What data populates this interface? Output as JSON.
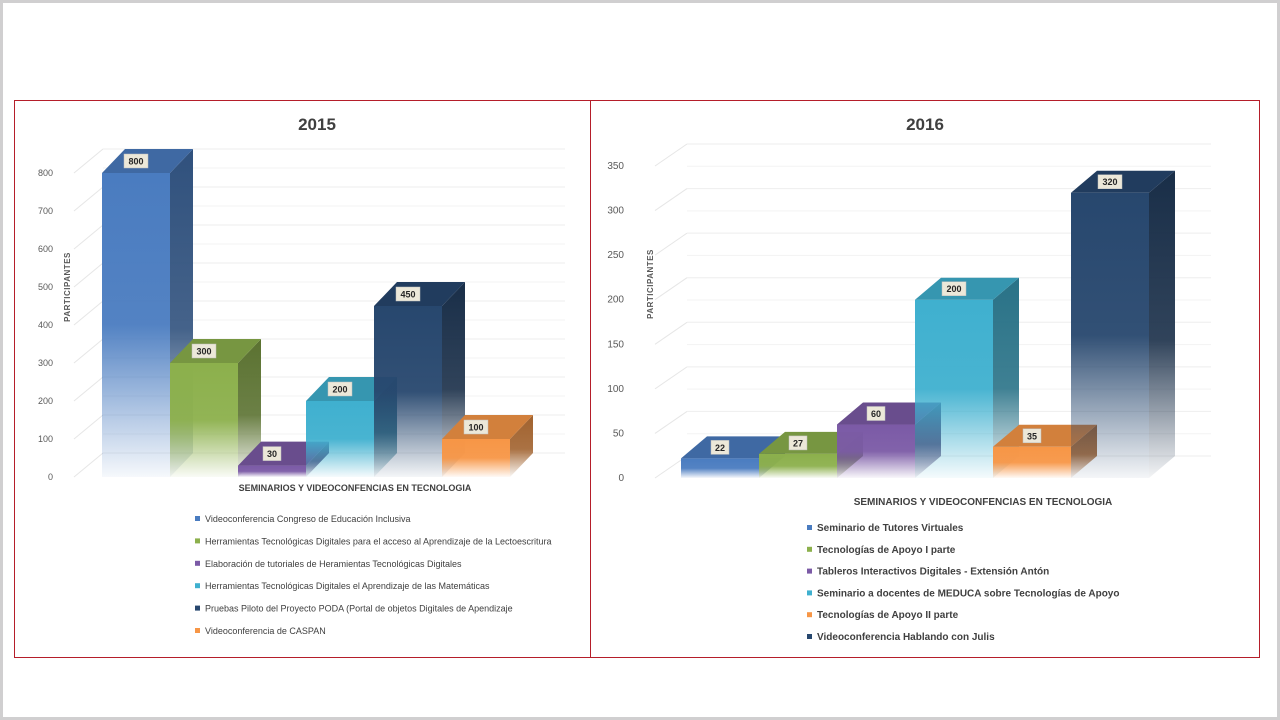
{
  "chart_data": [
    {
      "type": "bar",
      "title": "2015",
      "xlabel": "SEMINARIOS Y  VIDEOCONFENCIAS  EN  TECNOLOGIA",
      "ylabel": "PARTICIPANTES",
      "ylim": [
        0,
        800
      ],
      "yticks": [
        "0",
        "100",
        "200",
        "300",
        "400",
        "500",
        "600",
        "700",
        "800"
      ],
      "legend_position": "bottom",
      "series": [
        {
          "name": "Videoconferencia Congreso de Educación Inclusiva",
          "value": 800,
          "label": "800",
          "color": "#4a7cc0"
        },
        {
          "name": "Herramientas Tecnológicas Digitales para el acceso al Aprendizaje de la Lectoescritura",
          "value": 300,
          "label": "300",
          "color": "#8cb04c"
        },
        {
          "name": "Elaboración de tutoriales  de Heramientas Tecnológicas Digitales",
          "value": 30,
          "label": "30",
          "color": "#7b5aa6"
        },
        {
          "name": "Herramientas Tecnológicas Digitales el Aprendizaje de las Matemáticas",
          "value": 200,
          "label": "200",
          "color": "#3fb0cf"
        },
        {
          "name": "Pruebas Piloto del Proyecto PODA (Portal de objetos Digitales de Apendizaje",
          "value": 450,
          "label": "450",
          "color": "#27476e"
        },
        {
          "name": "Videoconferencia de CASPAN",
          "value": 100,
          "label": "100",
          "color": "#f79646"
        }
      ]
    },
    {
      "type": "bar",
      "title": "2016",
      "xlabel": "SEMINARIOS Y  VIDEOCONFENCIAS  EN  TECNOLOGIA",
      "ylabel": "PARTICIPANTES",
      "ylim": [
        0,
        350
      ],
      "yticks": [
        "0",
        "50",
        "100",
        "150",
        "200",
        "250",
        "300",
        "350"
      ],
      "legend_position": "bottom",
      "series": [
        {
          "name": "Seminario de Tutores Virtuales",
          "value": 22,
          "label": "22",
          "color": "#4a7cc0"
        },
        {
          "name": "Tecnologías de Apoyo I parte",
          "value": 27,
          "label": "27",
          "color": "#8cb04c"
        },
        {
          "name": "Tableros Interactivos Digitales - Extensión Antón",
          "value": 60,
          "label": "60",
          "color": "#7b5aa6"
        },
        {
          "name": "Seminario a docentes de MEDUCA sobre Tecnologías de Apoyo",
          "value": 200,
          "label": "200",
          "color": "#3fb0cf"
        },
        {
          "name": "Tecnologías de Apoyo II parte",
          "value": 35,
          "label": "35",
          "color": "#f79646"
        },
        {
          "name": "Videoconferencia Hablando con Julis",
          "value": 320,
          "label": "320",
          "color": "#27476e"
        }
      ]
    }
  ]
}
